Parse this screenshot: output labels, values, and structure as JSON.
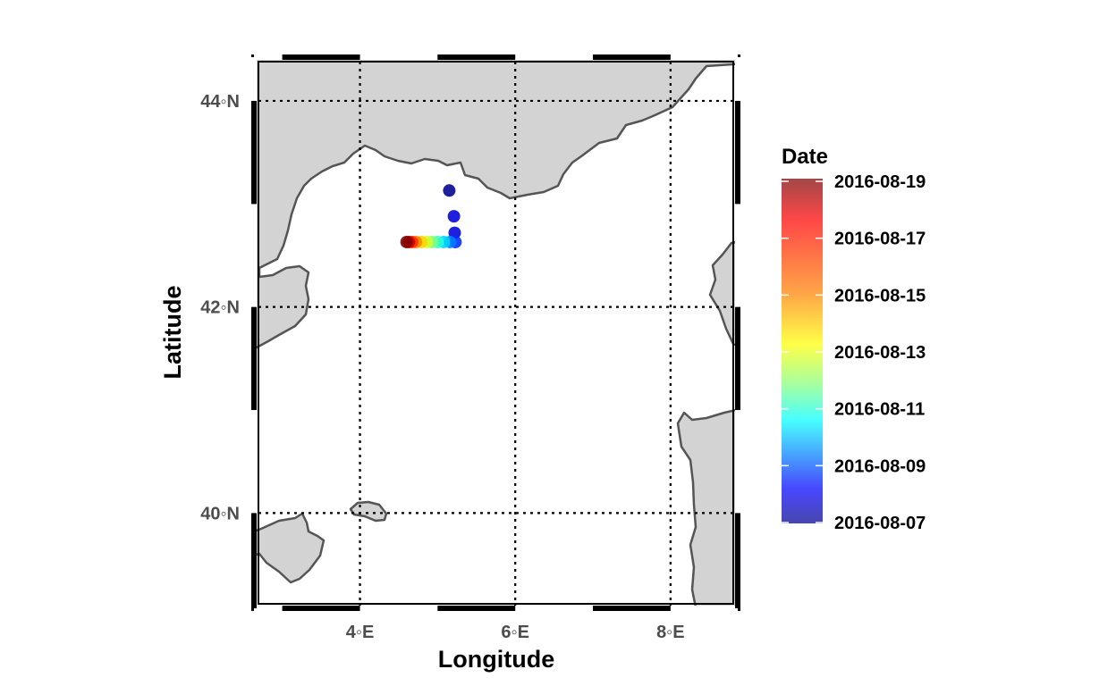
{
  "chart_data": {
    "type": "scatter",
    "title": "",
    "xlabel": "Longitude",
    "ylabel": "Latitude",
    "xlim": [
      2.6,
      8.9
    ],
    "ylim": [
      39.05,
      44.45
    ],
    "x_ticks": [
      {
        "value": 4,
        "label": "4◦E"
      },
      {
        "value": 6,
        "label": "6◦E"
      },
      {
        "value": 8,
        "label": "8◦E"
      }
    ],
    "y_ticks": [
      {
        "value": 40,
        "label": "40◦N"
      },
      {
        "value": 42,
        "label": "42◦N"
      },
      {
        "value": 44,
        "label": "44◦N"
      }
    ],
    "grid": "dotted, at tick positions",
    "legend": {
      "title": "Date",
      "placement": "right",
      "labels": [
        "2016-08-19",
        "2016-08-17",
        "2016-08-15",
        "2016-08-13",
        "2016-08-11",
        "2016-08-09",
        "2016-08-07"
      ],
      "colormap": [
        "#7f0000",
        "#ff0000",
        "#ff8000",
        "#ffff00",
        "#80ff80",
        "#00ffff",
        "#0080ff",
        "#0000ff",
        "#00008f"
      ]
    },
    "points": [
      {
        "lon": 5.15,
        "lat": 43.13,
        "date": "2016-08-07"
      },
      {
        "lon": 5.21,
        "lat": 42.88,
        "date": "2016-08-08"
      },
      {
        "lon": 5.22,
        "lat": 42.72,
        "date": "2016-08-08"
      },
      {
        "lon": 5.23,
        "lat": 42.63,
        "date": "2016-08-09"
      },
      {
        "lon": 5.16,
        "lat": 42.63,
        "date": "2016-08-10"
      },
      {
        "lon": 5.08,
        "lat": 42.63,
        "date": "2016-08-11"
      },
      {
        "lon": 5.0,
        "lat": 42.63,
        "date": "2016-08-12"
      },
      {
        "lon": 4.93,
        "lat": 42.63,
        "date": "2016-08-13"
      },
      {
        "lon": 4.86,
        "lat": 42.63,
        "date": "2016-08-14"
      },
      {
        "lon": 4.79,
        "lat": 42.63,
        "date": "2016-08-15"
      },
      {
        "lon": 4.72,
        "lat": 42.63,
        "date": "2016-08-16"
      },
      {
        "lon": 4.67,
        "lat": 42.63,
        "date": "2016-08-17"
      },
      {
        "lon": 4.63,
        "lat": 42.63,
        "date": "2016-08-18"
      },
      {
        "lon": 4.6,
        "lat": 42.63,
        "date": "2016-08-19"
      }
    ]
  },
  "colors": {
    "land_fill": "#d3d3d3",
    "coast_stroke": "#555555",
    "grid": "#000000"
  }
}
